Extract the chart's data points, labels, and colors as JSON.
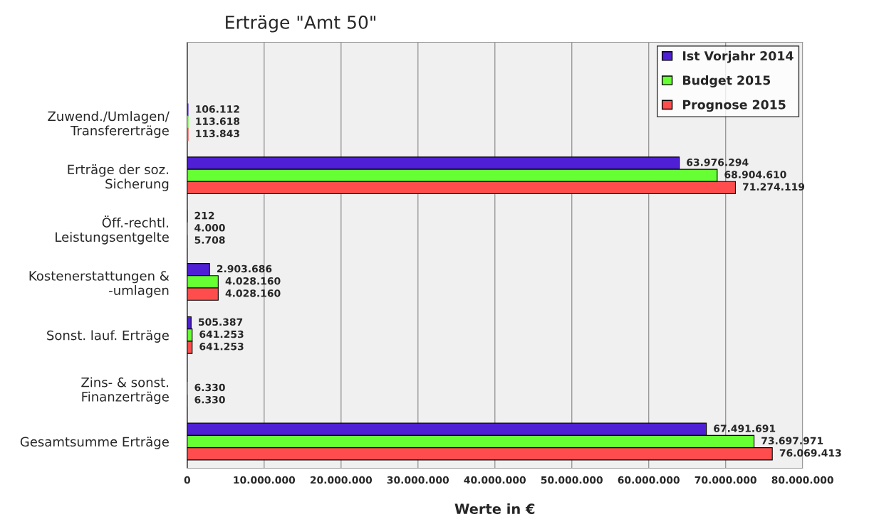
{
  "chart_data": {
    "type": "bar",
    "orientation": "horizontal",
    "title": "Erträge \"Amt 50\"",
    "xlabel": "Werte in €",
    "categories": [
      null,
      "Zuwend./Umlagen/\nTransfererträge",
      "Erträge der soz.\nSicherung",
      "Öff.-rechtl.\nLeistungsentgelte",
      "Kostenerstattungen &\n-umlagen",
      "Sonst. lauf. Erträge",
      "Zins- & sonst.\nFinanzerträge",
      "Gesamtsumme Erträge"
    ],
    "series": [
      {
        "name": "Ist Vorjahr 2014",
        "color": "#4f1fd6",
        "values": [
          null,
          106112,
          63976294,
          212,
          2903686,
          505387,
          null,
          67491691
        ],
        "value_labels": [
          null,
          "106.112",
          "63.976.294",
          "212",
          "2.903.686",
          "505.387",
          null,
          "67.491.691"
        ]
      },
      {
        "name": "Budget 2015",
        "color": "#66ff33",
        "values": [
          null,
          113618,
          68904610,
          4000,
          4028160,
          641253,
          6330,
          73697971
        ],
        "value_labels": [
          null,
          "113.618",
          "68.904.610",
          "4.000",
          "4.028.160",
          "641.253",
          "6.330",
          "73.697.971"
        ]
      },
      {
        "name": "Prognose 2015",
        "color": "#ff4d4d",
        "values": [
          null,
          113843,
          71274119,
          5708,
          4028160,
          641253,
          6330,
          76069413
        ],
        "value_labels": [
          null,
          "113.843",
          "71.274.119",
          "5.708",
          "4.028.160",
          "641.253",
          "6.330",
          "76.069.413"
        ]
      }
    ],
    "xlim": [
      0,
      80000000
    ],
    "xticks": [
      0,
      {
        "value": 10000000,
        "label": "10.000.000"
      },
      {
        "value": 20000000,
        "label": "20.000.000"
      },
      {
        "value": 30000000,
        "label": "30.000.000"
      },
      {
        "value": 40000000,
        "label": "40.000.000"
      },
      {
        "value": 50000000,
        "label": "50.000.000"
      },
      {
        "value": 60000000,
        "label": "60.000.000"
      },
      {
        "value": 70000000,
        "label": "70.000.000"
      },
      {
        "value": 80000000,
        "label": "80.000.000"
      }
    ],
    "grid": "x",
    "legend": "top right"
  }
}
